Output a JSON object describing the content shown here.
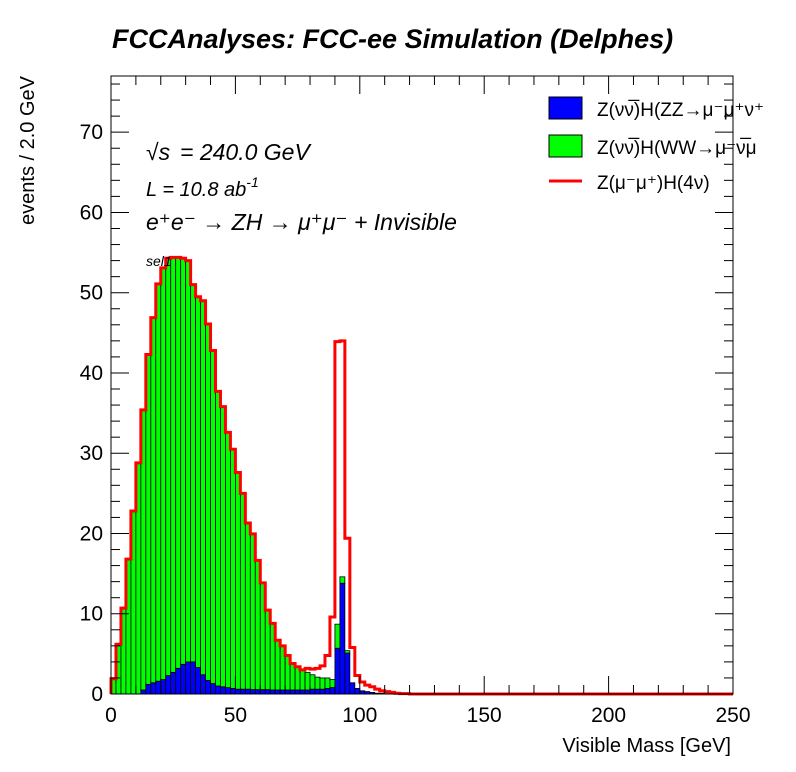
{
  "chart_data": {
    "type": "histogram",
    "title": "FCCAnalyses: FCC-ee Simulation (Delphes)",
    "xlabel": "Visible Mass [GeV]",
    "ylabel": "events / 2.0 GeV",
    "xlim": [
      0,
      250
    ],
    "ylim": [
      0,
      77
    ],
    "bin_width": 2.0,
    "x_ticks": [
      0,
      50,
      100,
      150,
      200,
      250
    ],
    "y_ticks": [
      0,
      10,
      20,
      30,
      40,
      50,
      60,
      70
    ],
    "grid": false,
    "legend_position": "top-right",
    "annotations": {
      "sqrt_s_symbol": "√s",
      "energy": "= 240.0 GeV",
      "lumi_prefix": "L = 10.8 ab",
      "lumi_exp": "-1",
      "process": "e⁺e⁻ → ZH → μ⁺μ⁻ + Invisible",
      "selection": "sel1"
    },
    "series": [
      {
        "name": "Z(νν̅)H(ZZ→μ⁻μ⁺ν⁺",
        "color": "#0000ff",
        "draw": "stacked-fill",
        "bin_edges_start": 0,
        "values": [
          0,
          0,
          0,
          0,
          0,
          0,
          0.5,
          1.2,
          1.4,
          1.6,
          1.8,
          2.3,
          2.7,
          3.2,
          3.7,
          4.0,
          4.0,
          3.3,
          2.4,
          1.7,
          1.3,
          1.0,
          0.9,
          0.8,
          0.7,
          0.6,
          0.6,
          0.6,
          0.55,
          0.55,
          0.55,
          0.55,
          0.5,
          0.5,
          0.5,
          0.5,
          0.5,
          0.5,
          0.5,
          0.5,
          0.6,
          0.6,
          0.6,
          0.7,
          0.8,
          5.7,
          13.8,
          5.1,
          1.4,
          0.7,
          0.4,
          0.3,
          0.2,
          0.1,
          0.1,
          0.05,
          0.05,
          0.05
        ]
      },
      {
        "name": "Z(νν̅)H(WW→μ⁻ν̅μ",
        "color": "#00ff00",
        "draw": "stacked-fill",
        "bin_edges_start": 0,
        "values": [
          1.9,
          6.2,
          10.7,
          16.8,
          22.8,
          28.8,
          34.9,
          41.1,
          45.5,
          49.5,
          51.3,
          52.0,
          51.7,
          51.2,
          50.6,
          50.0,
          47.0,
          46.2,
          46.6,
          44.4,
          41.5,
          36.7,
          34.9,
          31.8,
          29.8,
          27.0,
          24.4,
          20.7,
          19.4,
          16.1,
          13.3,
          9.9,
          8.3,
          6.2,
          5.5,
          4.3,
          3.3,
          2.9,
          2.5,
          2.2,
          1.8,
          1.5,
          1.4,
          1.3,
          1.0,
          3.0,
          0.8,
          0.3,
          0,
          0,
          0,
          0,
          0,
          0,
          0,
          0,
          0,
          0
        ]
      },
      {
        "name": "Z(μ⁻μ⁺)H(4ν)",
        "color": "#ff0000",
        "draw": "line-step",
        "bin_edges_start": 0,
        "values": [
          1.9,
          6.2,
          10.7,
          16.8,
          22.8,
          28.8,
          35.4,
          42.3,
          46.9,
          51.1,
          53.1,
          54.3,
          54.4,
          54.4,
          54.3,
          54.0,
          51.0,
          49.5,
          49.0,
          46.1,
          42.8,
          37.7,
          35.8,
          32.6,
          30.5,
          27.6,
          25.0,
          21.3,
          19.95,
          16.65,
          13.85,
          10.45,
          8.8,
          6.7,
          6.0,
          4.8,
          3.8,
          3.4,
          3.0,
          3.2,
          3.1,
          3.2,
          3.5,
          4.8,
          9.6,
          43.9,
          44.0,
          19.4,
          5.8,
          2.3,
          1.5,
          1.1,
          0.9,
          0.6,
          0.4,
          0.3,
          0.2,
          0.1,
          0.05,
          0.05
        ]
      }
    ]
  }
}
